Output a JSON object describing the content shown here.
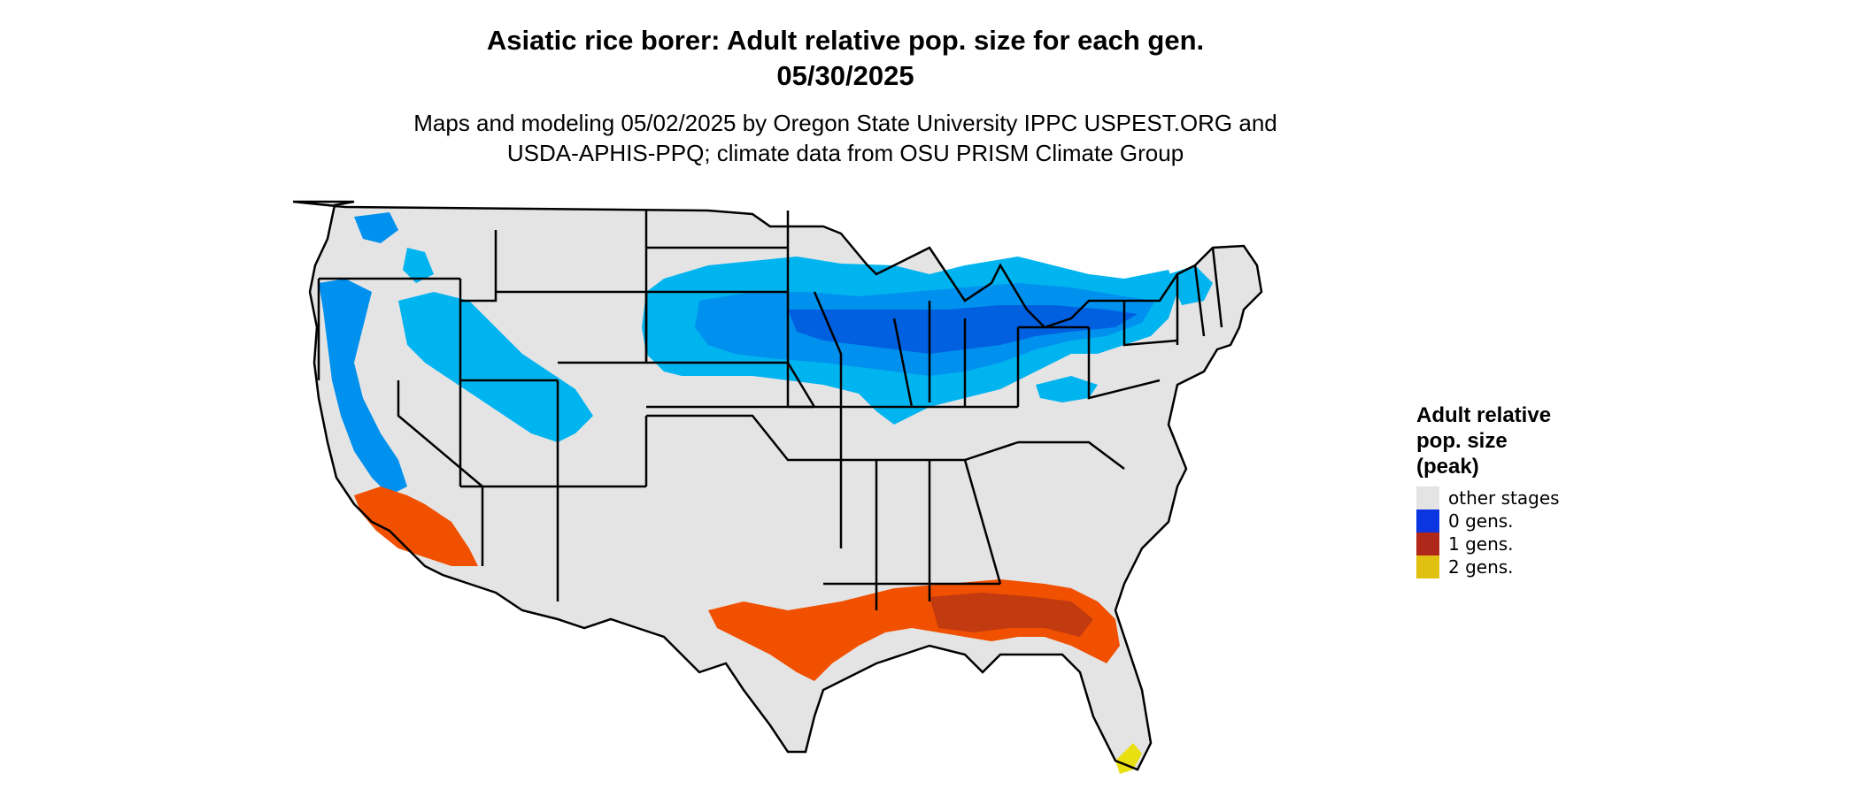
{
  "title": {
    "line1": "Asiatic rice borer: Adult relative pop. size for each gen.",
    "line2": "05/30/2025"
  },
  "subtitle": {
    "line1": "Maps and modeling 05/02/2025 by Oregon State University IPPC USPEST.ORG and",
    "line2": "USDA-APHIS-PPQ; climate data from OSU PRISM Climate Group"
  },
  "colors": {
    "land": "#e4e4e4",
    "border": "#000000",
    "light_blue": "#00b4f0",
    "mid_blue": "#0090ee",
    "dark_blue": "#0060e0",
    "orange": "#f05000",
    "dark_orange": "#c23a10",
    "yellow": "#e8e010"
  },
  "legend": {
    "title": "Adult relative\npop. size\n(peak)",
    "items": [
      {
        "label": "other stages",
        "color": "#e4e4e4"
      },
      {
        "label": "0 gens.",
        "color": "#0a35e0"
      },
      {
        "label": "1 gens.",
        "color": "#b0281a"
      },
      {
        "label": "2 gens.",
        "color": "#e0c010"
      }
    ]
  }
}
